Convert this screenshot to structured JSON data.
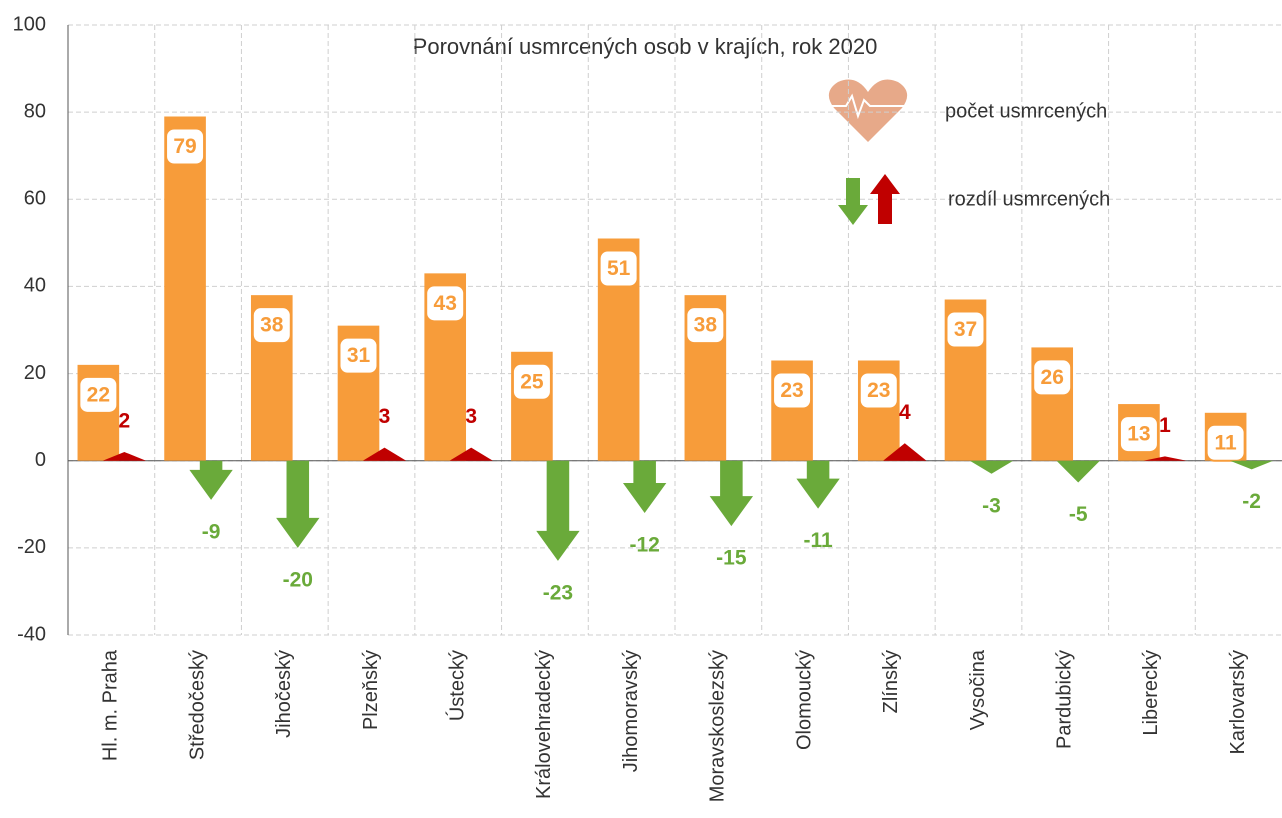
{
  "chart_data": {
    "type": "bar-arrow",
    "title": "Porovnání  usmrcených osob v krajích, rok 2020",
    "categories": [
      "Hl. m. Praha",
      "Středočeský",
      "Jihočeský",
      "Plzeňský",
      "Ústecký",
      "Královehradecký",
      "Jihomoravský",
      "Moravskoslezský",
      "Olomoucký",
      "Zlínský",
      "Vysočina",
      "Pardubický",
      "Liberecký",
      "Karlovarský"
    ],
    "series": [
      {
        "name": "počet usmrcených",
        "color": "#f79c3a",
        "values": [
          22,
          79,
          38,
          31,
          43,
          25,
          51,
          38,
          23,
          23,
          37,
          26,
          13,
          11
        ]
      },
      {
        "name": "rozdíl usmrcených",
        "positive_color": "#c00000",
        "negative_color": "#6aaa3a",
        "values": [
          2,
          -9,
          -20,
          3,
          3,
          -23,
          -12,
          -15,
          -11,
          4,
          -3,
          -5,
          1,
          -2
        ]
      }
    ],
    "ylim": [
      -40,
      100
    ],
    "yticks": [
      -40,
      -20,
      0,
      20,
      40,
      60,
      80,
      100
    ],
    "grid": true
  }
}
